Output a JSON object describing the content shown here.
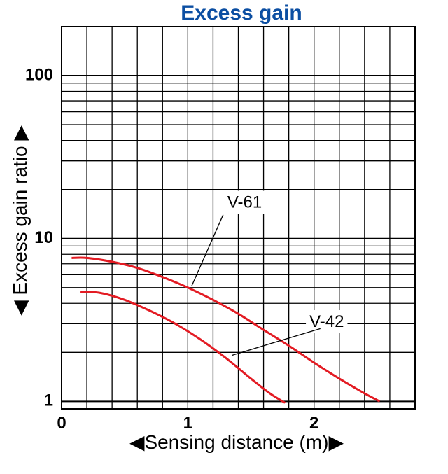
{
  "colors": {
    "title": "#0b4ea2",
    "series": "#e31b23",
    "grid": "#000000",
    "background": "#ffffff"
  },
  "chart_data": {
    "type": "line",
    "title": "Excess gain",
    "xlabel": "◀Sensing distance (m)▶",
    "ylabel": "◀ Excess gain ratio ▶",
    "x_scale": "linear",
    "y_scale": "log",
    "xlim": [
      0,
      2.8
    ],
    "ylim": [
      0.9,
      200
    ],
    "xticks": [
      0,
      1,
      2
    ],
    "xtick_labels": [
      "0",
      "1",
      "2"
    ],
    "yticks": [
      1,
      10,
      100
    ],
    "ytick_labels": [
      "1",
      "10",
      "100"
    ],
    "grid": true,
    "series": [
      {
        "name": "V-61",
        "x": [
          0.08,
          0.2,
          0.4,
          0.6,
          0.8,
          1.0,
          1.2,
          1.4,
          1.6,
          1.8,
          2.0,
          2.2,
          2.4,
          2.52
        ],
        "y": [
          7.6,
          7.6,
          7.2,
          6.6,
          5.8,
          5.0,
          4.2,
          3.45,
          2.75,
          2.2,
          1.73,
          1.38,
          1.12,
          1.0
        ],
        "label_x": 1.45,
        "label_y": 16.5,
        "leader_from": [
          1.28,
          14.0
        ],
        "leader_to": [
          1.03,
          5.1
        ]
      },
      {
        "name": "V-42",
        "x": [
          0.15,
          0.3,
          0.5,
          0.7,
          0.9,
          1.1,
          1.3,
          1.5,
          1.65,
          1.77
        ],
        "y": [
          4.7,
          4.65,
          4.2,
          3.6,
          3.0,
          2.4,
          1.85,
          1.38,
          1.12,
          0.98
        ],
        "label_x": 2.1,
        "label_y": 3.05,
        "leader_from": [
          2.05,
          2.8
        ],
        "leader_to": [
          1.35,
          1.92
        ]
      }
    ]
  }
}
